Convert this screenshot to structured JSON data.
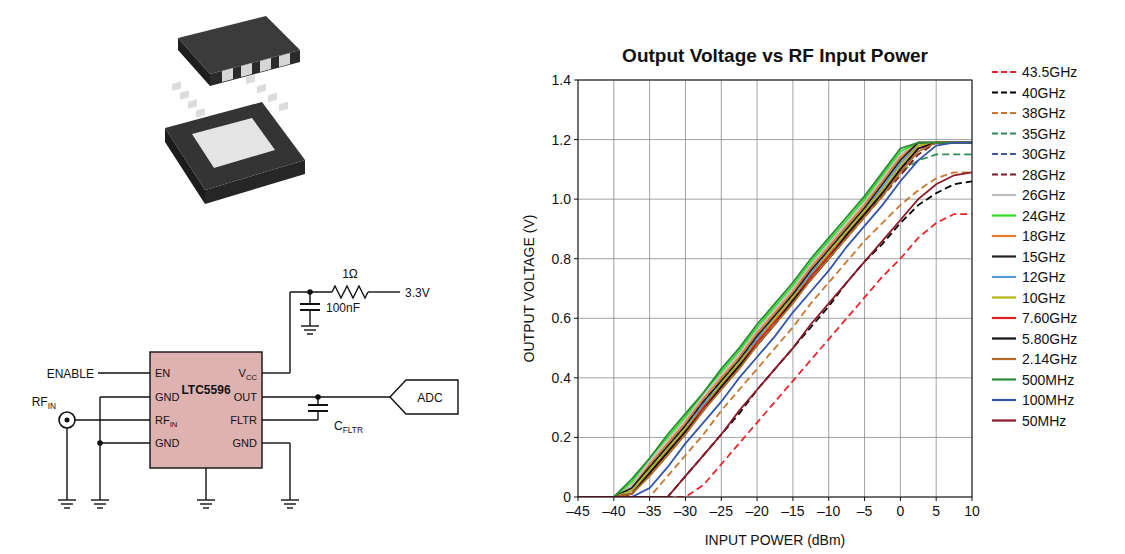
{
  "chart_data": {
    "type": "line",
    "title": "Output Voltage vs RF Input Power",
    "x_label": "INPUT POWER (dBm)",
    "y_label": "OUTPUT VOLTAGE (V)",
    "x": [
      -45,
      -42.5,
      -40,
      -37.5,
      -35,
      -32.5,
      -30,
      -27.5,
      -25,
      -22.5,
      -20,
      -17.5,
      -15,
      -12.5,
      -10,
      -7.5,
      -5,
      -2.5,
      0,
      2.5,
      5,
      7.5,
      10
    ],
    "xlim": [
      -45,
      10
    ],
    "xticks": [
      {
        "value": -45,
        "label": "–45"
      },
      {
        "value": -40,
        "label": "–40"
      },
      {
        "value": -35,
        "label": "–35"
      },
      {
        "value": -30,
        "label": "–30"
      },
      {
        "value": -25,
        "label": "–25"
      },
      {
        "value": -20,
        "label": "–20"
      },
      {
        "value": -15,
        "label": "–15"
      },
      {
        "value": -10,
        "label": "–10"
      },
      {
        "value": -5,
        "label": "–5"
      },
      0,
      5,
      10
    ],
    "ylim": [
      0,
      1.4
    ],
    "yticks": [
      0,
      0.2,
      0.4,
      0.6,
      0.8,
      {
        "value": 1,
        "label": "1.0"
      },
      1.2,
      1.4
    ],
    "grid": true,
    "legend": "right",
    "series": [
      {
        "name": "43.5GHz",
        "color": "#e8262b",
        "line_style": "dashed",
        "values": [
          0,
          0,
          0,
          0,
          0,
          0,
          0,
          0.04,
          0.11,
          0.18,
          0.25,
          0.32,
          0.39,
          0.46,
          0.53,
          0.6,
          0.67,
          0.74,
          0.8,
          0.87,
          0.92,
          0.95,
          0.95
        ]
      },
      {
        "name": "40GHz",
        "color": "#000000",
        "line_style": "dashed",
        "values": [
          0,
          0,
          0,
          0,
          0,
          0,
          0.07,
          0.14,
          0.21,
          0.28,
          0.36,
          0.43,
          0.5,
          0.57,
          0.64,
          0.72,
          0.79,
          0.85,
          0.92,
          0.98,
          1.02,
          1.05,
          1.06
        ]
      },
      {
        "name": "38GHz",
        "color": "#c8782f",
        "line_style": "dashed",
        "values": [
          0,
          0,
          0,
          0,
          0,
          0.07,
          0.14,
          0.21,
          0.29,
          0.36,
          0.43,
          0.5,
          0.57,
          0.65,
          0.72,
          0.79,
          0.86,
          0.92,
          0.98,
          1.03,
          1.07,
          1.09,
          1.09
        ]
      },
      {
        "name": "35GHz",
        "color": "#2e8b57",
        "line_style": "dashed",
        "values": [
          0,
          0,
          0,
          0.03,
          0.1,
          0.17,
          0.24,
          0.32,
          0.39,
          0.46,
          0.53,
          0.6,
          0.68,
          0.75,
          0.82,
          0.89,
          0.96,
          1.03,
          1.09,
          1.13,
          1.15,
          1.15,
          1.15
        ]
      },
      {
        "name": "30GHz",
        "color": "#3a5ba8",
        "line_style": "dashed",
        "values": [
          0,
          0,
          0,
          0.02,
          0.09,
          0.16,
          0.23,
          0.31,
          0.38,
          0.45,
          0.52,
          0.6,
          0.67,
          0.74,
          0.81,
          0.88,
          0.95,
          1.02,
          1.1,
          1.17,
          1.19,
          1.19,
          1.19
        ]
      },
      {
        "name": "28GHz",
        "color": "#7b1a2a",
        "line_style": "dashed",
        "values": [
          0,
          0,
          0,
          0.01,
          0.08,
          0.15,
          0.22,
          0.3,
          0.37,
          0.44,
          0.51,
          0.58,
          0.66,
          0.73,
          0.8,
          0.87,
          0.94,
          1.01,
          1.08,
          1.15,
          1.19,
          1.19,
          1.19
        ]
      },
      {
        "name": "26GHz",
        "color": "#bdbdbd",
        "line_style": "solid",
        "values": [
          0,
          0,
          0,
          0.04,
          0.12,
          0.19,
          0.26,
          0.34,
          0.41,
          0.48,
          0.56,
          0.63,
          0.7,
          0.78,
          0.85,
          0.92,
          0.99,
          1.07,
          1.15,
          1.19,
          1.19,
          1.19,
          1.19
        ]
      },
      {
        "name": "24GHz",
        "color": "#33dd22",
        "line_style": "solid",
        "values": [
          0,
          0,
          0,
          0.05,
          0.13,
          0.2,
          0.27,
          0.35,
          0.42,
          0.49,
          0.57,
          0.64,
          0.71,
          0.79,
          0.86,
          0.93,
          1.0,
          1.08,
          1.16,
          1.19,
          1.19,
          1.19,
          1.19
        ]
      },
      {
        "name": "18GHz",
        "color": "#e07a2e",
        "line_style": "solid",
        "values": [
          0,
          0,
          0,
          0.03,
          0.11,
          0.18,
          0.25,
          0.33,
          0.4,
          0.47,
          0.55,
          0.62,
          0.69,
          0.77,
          0.84,
          0.91,
          0.98,
          1.06,
          1.14,
          1.19,
          1.19,
          1.19,
          1.19
        ]
      },
      {
        "name": "15GHz",
        "color": "#222222",
        "line_style": "solid",
        "values": [
          0,
          0,
          0,
          0.03,
          0.1,
          0.17,
          0.24,
          0.32,
          0.39,
          0.46,
          0.54,
          0.61,
          0.68,
          0.76,
          0.83,
          0.9,
          0.97,
          1.05,
          1.13,
          1.19,
          1.19,
          1.19,
          1.19
        ]
      },
      {
        "name": "12GHz",
        "color": "#5b9bd5",
        "line_style": "solid",
        "values": [
          0,
          0,
          0,
          0.02,
          0.09,
          0.16,
          0.23,
          0.31,
          0.38,
          0.45,
          0.53,
          0.6,
          0.67,
          0.75,
          0.82,
          0.89,
          0.96,
          1.04,
          1.12,
          1.18,
          1.19,
          1.19,
          1.19
        ]
      },
      {
        "name": "10GHz",
        "color": "#b5b514",
        "line_style": "solid",
        "values": [
          0,
          0,
          0,
          0.02,
          0.09,
          0.16,
          0.23,
          0.3,
          0.38,
          0.45,
          0.52,
          0.6,
          0.67,
          0.74,
          0.82,
          0.89,
          0.96,
          1.03,
          1.11,
          1.18,
          1.19,
          1.19,
          1.19
        ]
      },
      {
        "name": "7.60GHz",
        "color": "#e02020",
        "line_style": "solid",
        "values": [
          0,
          0,
          0,
          0.01,
          0.08,
          0.15,
          0.22,
          0.3,
          0.37,
          0.44,
          0.52,
          0.59,
          0.66,
          0.74,
          0.81,
          0.88,
          0.95,
          1.02,
          1.1,
          1.17,
          1.19,
          1.19,
          1.19
        ]
      },
      {
        "name": "5.80GHz",
        "color": "#111111",
        "line_style": "solid",
        "values": [
          0,
          0,
          0,
          0.01,
          0.08,
          0.15,
          0.22,
          0.29,
          0.37,
          0.44,
          0.51,
          0.58,
          0.66,
          0.73,
          0.8,
          0.88,
          0.95,
          1.02,
          1.1,
          1.17,
          1.19,
          1.19,
          1.19
        ]
      },
      {
        "name": "2.14GHz",
        "color": "#b06a2a",
        "line_style": "solid",
        "values": [
          0,
          0,
          0,
          0.01,
          0.07,
          0.14,
          0.21,
          0.29,
          0.36,
          0.43,
          0.51,
          0.58,
          0.65,
          0.73,
          0.8,
          0.87,
          0.94,
          1.01,
          1.09,
          1.16,
          1.19,
          1.19,
          1.19
        ]
      },
      {
        "name": "500MHz",
        "color": "#2a8a3a",
        "line_style": "solid",
        "values": [
          0,
          0,
          0,
          0.06,
          0.13,
          0.21,
          0.28,
          0.35,
          0.43,
          0.5,
          0.58,
          0.65,
          0.72,
          0.8,
          0.87,
          0.94,
          1.01,
          1.09,
          1.17,
          1.19,
          1.19,
          1.19,
          1.19
        ]
      },
      {
        "name": "100MHz",
        "color": "#3355aa",
        "line_style": "solid",
        "values": [
          0,
          0,
          0,
          0,
          0.03,
          0.1,
          0.18,
          0.25,
          0.32,
          0.4,
          0.47,
          0.54,
          0.62,
          0.69,
          0.76,
          0.84,
          0.91,
          0.98,
          1.06,
          1.13,
          1.18,
          1.19,
          1.19
        ]
      },
      {
        "name": "50MHz",
        "color": "#8b1a2a",
        "line_style": "solid",
        "values": [
          0,
          0,
          0,
          0,
          0,
          0,
          0.07,
          0.14,
          0.21,
          0.29,
          0.36,
          0.43,
          0.5,
          0.58,
          0.65,
          0.72,
          0.79,
          0.86,
          0.93,
          1.0,
          1.05,
          1.08,
          1.09
        ]
      }
    ]
  },
  "schematic": {
    "chip": "LTC5596",
    "pins_left": [
      {
        "text": "EN"
      },
      {
        "text": "GND"
      },
      {
        "text": "RF",
        "sub": "IN"
      },
      {
        "text": "GND"
      }
    ],
    "pins_right": [
      {
        "text": "V",
        "sub": "CC"
      },
      {
        "text": "OUT"
      },
      {
        "text": "FLTR"
      },
      {
        "text": "GND"
      }
    ],
    "enable": "ENABLE",
    "rf_in": {
      "text": "RF",
      "sub": "IN"
    },
    "resistor": "1Ω",
    "supply": "3.3V",
    "capacitor": "100nF",
    "filter_cap": {
      "text": "C",
      "sub": "FLTR"
    },
    "adc": "ADC"
  }
}
